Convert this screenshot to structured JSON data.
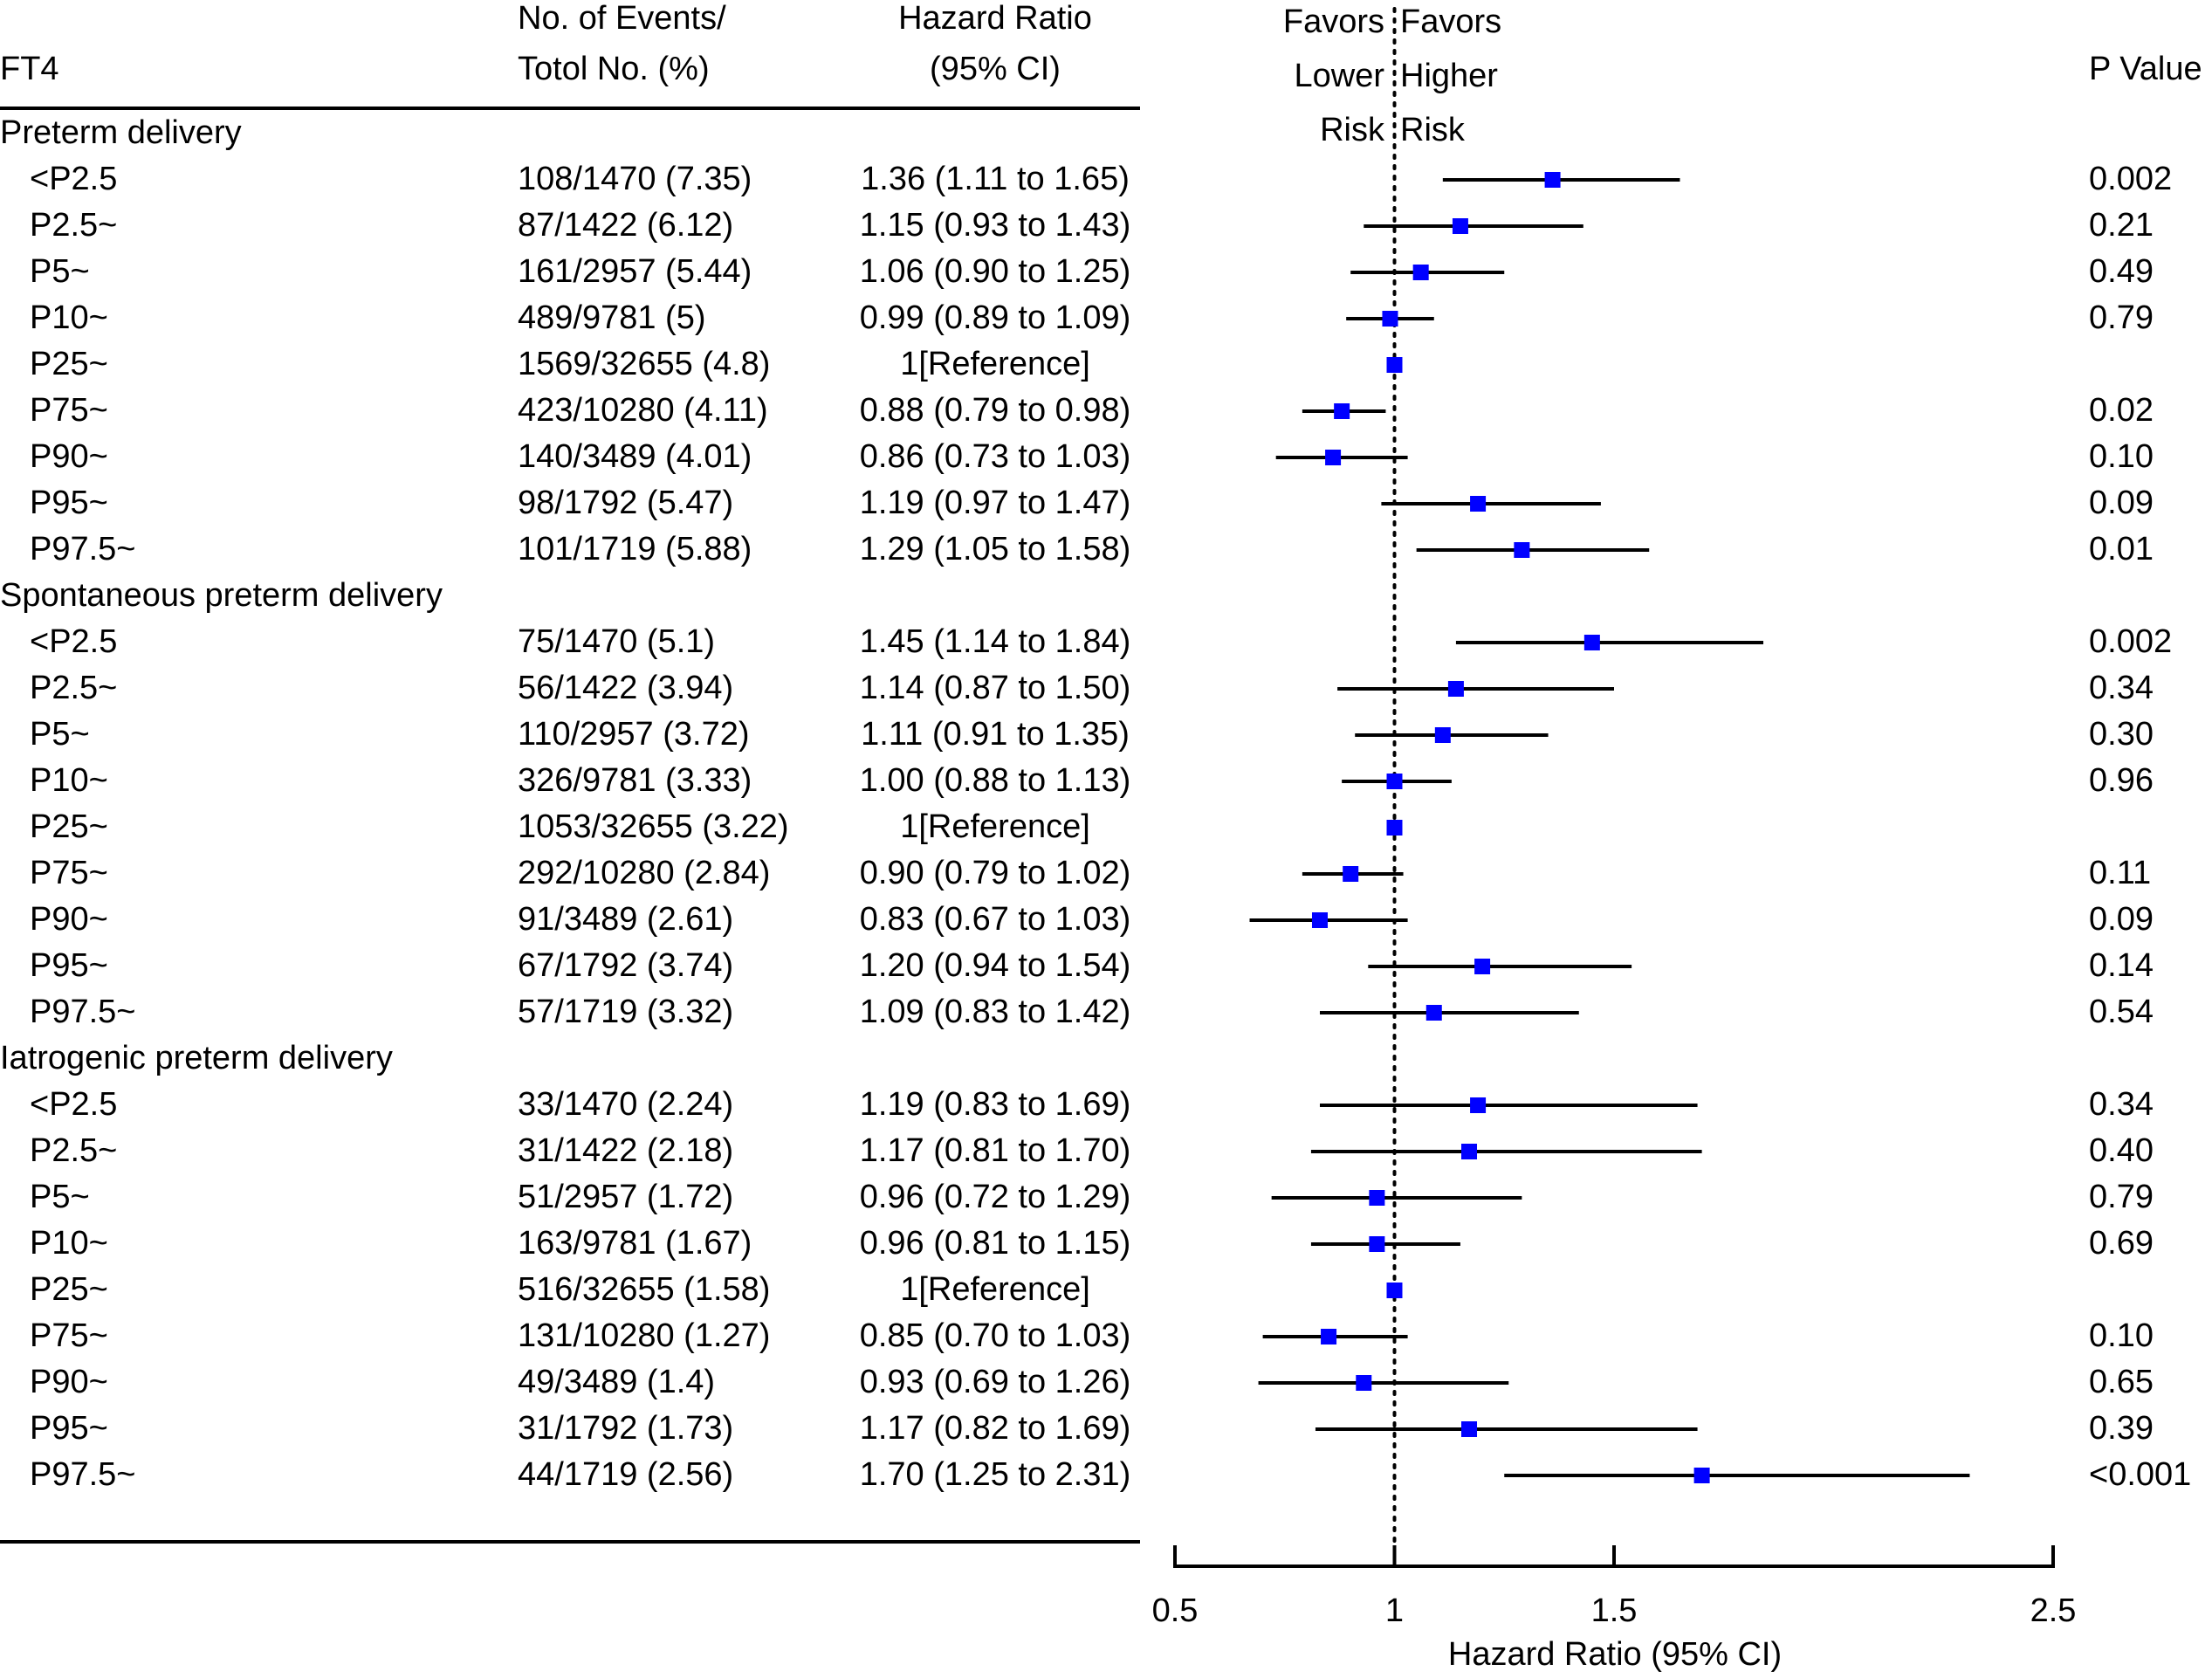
{
  "header": {
    "ft4": "FT4",
    "events_line1": "No. of Events/",
    "events_line2": "Totol No. (%)",
    "hr_line1": "Hazard Ratio",
    "hr_line2": "(95% CI)",
    "favors_lower_1": "Favors",
    "favors_lower_2": "Lower",
    "favors_lower_3": "Risk",
    "favors_higher_1": "Favors",
    "favors_higher_2": "Higher",
    "favors_higher_3": "Risk",
    "pvalue": "P Value"
  },
  "colors": {
    "marker": "#0000ff",
    "line": "#000000"
  },
  "chart_data": {
    "type": "forest",
    "title": "",
    "xlabel": "Hazard Ratio (95% CI)",
    "xlim": [
      0.5,
      2.5
    ],
    "reference_line": 1,
    "ticks": [
      0.5,
      1,
      1.5,
      2.5
    ],
    "tick_labels": [
      "0.5",
      "1",
      "1.5",
      "2.5"
    ],
    "groups": [
      {
        "name": "Preterm delivery",
        "rows": [
          {
            "label": "<P2.5",
            "events": "108/1470 (7.35)",
            "hr_text": "1.36 (1.11 to 1.65)",
            "p": "0.002",
            "hr": 1.36,
            "lo": 1.11,
            "hi": 1.65
          },
          {
            "label": "P2.5~",
            "events": "87/1422 (6.12)",
            "hr_text": "1.15 (0.93 to 1.43)",
            "p": "0.21",
            "hr": 1.15,
            "lo": 0.93,
            "hi": 1.43
          },
          {
            "label": "P5~",
            "events": "161/2957 (5.44)",
            "hr_text": "1.06 (0.90 to 1.25)",
            "p": "0.49",
            "hr": 1.06,
            "lo": 0.9,
            "hi": 1.25
          },
          {
            "label": "P10~",
            "events": "489/9781 (5)",
            "hr_text": "0.99 (0.89 to 1.09)",
            "p": "0.79",
            "hr": 0.99,
            "lo": 0.89,
            "hi": 1.09
          },
          {
            "label": "P25~",
            "events": "1569/32655 (4.8)",
            "hr_text": "1[Reference]",
            "p": "",
            "hr": 1,
            "lo": 1,
            "hi": 1
          },
          {
            "label": "P75~",
            "events": "423/10280 (4.11)",
            "hr_text": "0.88 (0.79 to 0.98)",
            "p": "0.02",
            "hr": 0.88,
            "lo": 0.79,
            "hi": 0.98
          },
          {
            "label": "P90~",
            "events": "140/3489 (4.01)",
            "hr_text": "0.86 (0.73 to 1.03)",
            "p": "0.10",
            "hr": 0.86,
            "lo": 0.73,
            "hi": 1.03
          },
          {
            "label": "P95~",
            "events": "98/1792 (5.47)",
            "hr_text": "1.19 (0.97 to 1.47)",
            "p": "0.09",
            "hr": 1.19,
            "lo": 0.97,
            "hi": 1.47
          },
          {
            "label": "P97.5~",
            "events": "101/1719 (5.88)",
            "hr_text": "1.29 (1.05 to 1.58)",
            "p": "0.01",
            "hr": 1.29,
            "lo": 1.05,
            "hi": 1.58
          }
        ]
      },
      {
        "name": "Spontaneous preterm delivery",
        "rows": [
          {
            "label": "<P2.5",
            "events": "75/1470 (5.1)",
            "hr_text": "1.45 (1.14 to 1.84)",
            "p": "0.002",
            "hr": 1.45,
            "lo": 1.14,
            "hi": 1.84
          },
          {
            "label": "P2.5~",
            "events": "56/1422 (3.94)",
            "hr_text": "1.14 (0.87 to 1.50)",
            "p": "0.34",
            "hr": 1.14,
            "lo": 0.87,
            "hi": 1.5
          },
          {
            "label": "P5~",
            "events": "110/2957 (3.72)",
            "hr_text": "1.11 (0.91 to 1.35)",
            "p": "0.30",
            "hr": 1.11,
            "lo": 0.91,
            "hi": 1.35
          },
          {
            "label": "P10~",
            "events": "326/9781 (3.33)",
            "hr_text": "1.00 (0.88 to 1.13)",
            "p": "0.96",
            "hr": 1.0,
            "lo": 0.88,
            "hi": 1.13
          },
          {
            "label": "P25~",
            "events": "1053/32655 (3.22)",
            "hr_text": "1[Reference]",
            "p": "",
            "hr": 1,
            "lo": 1,
            "hi": 1
          },
          {
            "label": "P75~",
            "events": "292/10280 (2.84)",
            "hr_text": "0.90 (0.79 to 1.02)",
            "p": "0.11",
            "hr": 0.9,
            "lo": 0.79,
            "hi": 1.02
          },
          {
            "label": "P90~",
            "events": "91/3489 (2.61)",
            "hr_text": "0.83 (0.67 to 1.03)",
            "p": "0.09",
            "hr": 0.83,
            "lo": 0.67,
            "hi": 1.03
          },
          {
            "label": "P95~",
            "events": "67/1792 (3.74)",
            "hr_text": "1.20 (0.94 to 1.54)",
            "p": "0.14",
            "hr": 1.2,
            "lo": 0.94,
            "hi": 1.54
          },
          {
            "label": "P97.5~",
            "events": "57/1719 (3.32)",
            "hr_text": "1.09 (0.83 to 1.42)",
            "p": "0.54",
            "hr": 1.09,
            "lo": 0.83,
            "hi": 1.42
          }
        ]
      },
      {
        "name": "Iatrogenic preterm delivery",
        "rows": [
          {
            "label": "<P2.5",
            "events": "33/1470 (2.24)",
            "hr_text": "1.19 (0.83 to 1.69)",
            "p": "0.34",
            "hr": 1.19,
            "lo": 0.83,
            "hi": 1.69
          },
          {
            "label": "P2.5~",
            "events": "31/1422 (2.18)",
            "hr_text": "1.17 (0.81 to 1.70)",
            "p": "0.40",
            "hr": 1.17,
            "lo": 0.81,
            "hi": 1.7
          },
          {
            "label": "P5~",
            "events": "51/2957 (1.72)",
            "hr_text": "0.96 (0.72 to 1.29)",
            "p": "0.79",
            "hr": 0.96,
            "lo": 0.72,
            "hi": 1.29
          },
          {
            "label": "P10~",
            "events": "163/9781 (1.67)",
            "hr_text": "0.96 (0.81 to 1.15)",
            "p": "0.69",
            "hr": 0.96,
            "lo": 0.81,
            "hi": 1.15
          },
          {
            "label": "P25~",
            "events": "516/32655 (1.58)",
            "hr_text": "1[Reference]",
            "p": "",
            "hr": 1,
            "lo": 1,
            "hi": 1
          },
          {
            "label": "P75~",
            "events": "131/10280 (1.27)",
            "hr_text": "0.85 (0.70 to 1.03)",
            "p": "0.10",
            "hr": 0.85,
            "lo": 0.7,
            "hi": 1.03
          },
          {
            "label": "P90~",
            "events": "49/3489 (1.4)",
            "hr_text": "0.93 (0.69 to 1.26)",
            "p": "0.65",
            "hr": 0.93,
            "lo": 0.69,
            "hi": 1.26
          },
          {
            "label": "P95~",
            "events": "31/1792 (1.73)",
            "hr_text": "1.17 (0.82 to 1.69)",
            "p": "0.39",
            "hr": 1.17,
            "lo": 0.82,
            "hi": 1.69
          },
          {
            "label": "P97.5~",
            "events": "44/1719 (2.56)",
            "hr_text": "1.70 (1.25 to 2.31)",
            "p": "<0.001",
            "hr": 1.7,
            "lo": 1.25,
            "hi": 2.31
          }
        ]
      }
    ]
  }
}
